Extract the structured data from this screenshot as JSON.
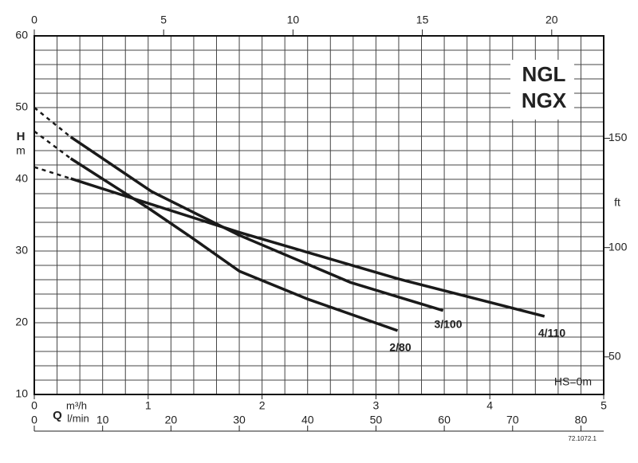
{
  "chart_data": {
    "type": "line",
    "title": [
      "NGL",
      "NGX"
    ],
    "ylabel": "H",
    "yunit": "m",
    "ylim": [
      10,
      60
    ],
    "yticks": [
      10,
      20,
      30,
      40,
      50,
      60
    ],
    "y2label": "ft",
    "y2lim": [
      32.81,
      196.85
    ],
    "y2ticks": [
      50,
      100,
      150
    ],
    "xlabel": "m³/h",
    "xlim": [
      0,
      5
    ],
    "xticks": [
      0,
      1,
      2,
      3,
      4,
      5
    ],
    "q_label": "Q",
    "x2label": "l/min",
    "x2lim": [
      0,
      83.33
    ],
    "x2ticks": [
      0,
      10,
      20,
      30,
      40,
      50,
      60,
      70,
      80
    ],
    "x3lim": [
      0,
      22.01
    ],
    "x3ticks": [
      0,
      5,
      10,
      15,
      20
    ],
    "grid": true,
    "annotation": "HS=0m",
    "footnote": "72.1072.1",
    "series": [
      {
        "name": "2/80",
        "color": "#1a1a1a",
        "x": [
          0.32,
          1.0,
          1.38,
          1.8,
          2.4,
          3.19
        ],
        "values": [
          42.9,
          36.0,
          31.9,
          27.2,
          23.3,
          18.9
        ],
        "extension": {
          "x": [
            0,
            0.32
          ],
          "values": [
            46.7,
            42.9
          ]
        }
      },
      {
        "name": "3/100",
        "color": "#1a1a1a",
        "x": [
          0.32,
          1.03,
          1.8,
          2.78,
          3.59
        ],
        "values": [
          45.9,
          38.3,
          32.2,
          25.6,
          21.7
        ],
        "extension": {
          "x": [
            0,
            0.32
          ],
          "values": [
            50.0,
            45.9
          ]
        }
      },
      {
        "name": "4/110",
        "color": "#1a1a1a",
        "x": [
          0.32,
          1.8,
          3.2,
          4.48
        ],
        "values": [
          40.1,
          32.6,
          26.1,
          20.9
        ],
        "extension": {
          "x": [
            0,
            0.32
          ],
          "values": [
            41.7,
            40.1
          ]
        }
      }
    ]
  }
}
